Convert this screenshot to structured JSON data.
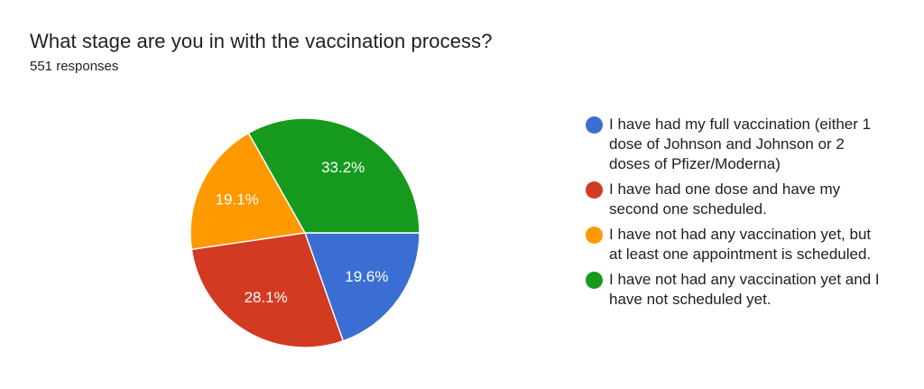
{
  "header": {
    "title": "What stage are you in with the vaccination process?",
    "subtitle": "551 responses"
  },
  "chart_data": {
    "type": "pie",
    "title": "What stage are you in with the vaccination process?",
    "subtitle": "551 responses",
    "labels": [
      "I have had my full vaccination (either 1 dose of Johnson and Johnson or 2 doses of Pfizer/Moderna)",
      "I have had one dose and have my second one scheduled.",
      "I have not had any vaccination yet, but at least one appointment is scheduled.",
      "I have not had any vaccination yet and I have not scheduled yet."
    ],
    "values": [
      19.6,
      28.1,
      19.1,
      33.2
    ],
    "display_labels": [
      "19.6%",
      "28.1%",
      "19.1%",
      "33.2%"
    ],
    "unit": "%",
    "colors": [
      "#3b6ed2",
      "#d33a22",
      "#ff9900",
      "#169a1d"
    ],
    "legend_position": "right",
    "start_angle_deg": 0,
    "direction": "clockwise",
    "label_color": "#ffffff",
    "separator_color": "#ffffff"
  }
}
